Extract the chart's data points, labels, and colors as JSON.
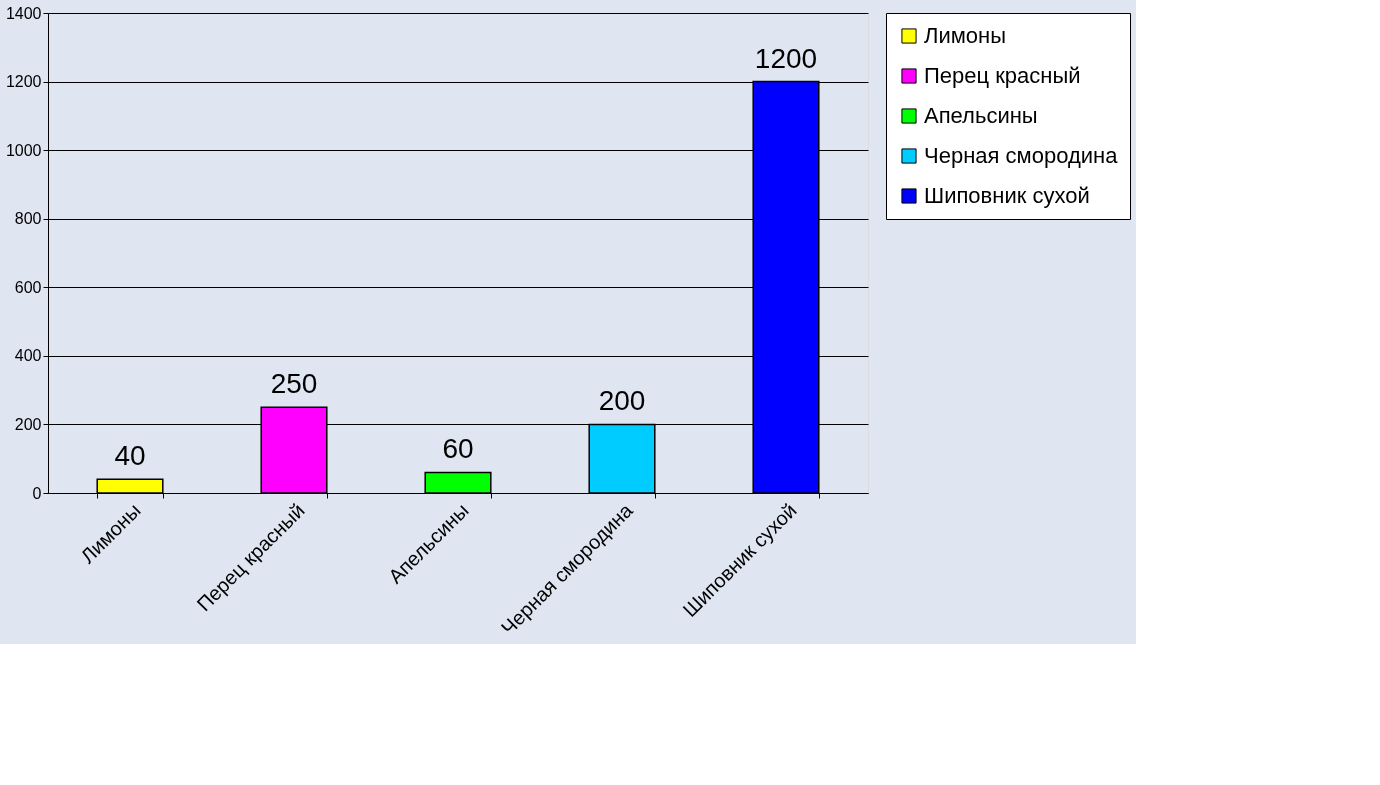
{
  "chart_data": {
    "type": "bar",
    "categories": [
      "Лимоны",
      "Перец красный",
      "Апельсины",
      "Черная смородина",
      "Шиповник сухой"
    ],
    "series": [
      {
        "name": "Лимоны",
        "color": "#ffff00",
        "values": [
          40,
          null,
          null,
          null,
          null
        ]
      },
      {
        "name": "Перец красный",
        "color": "#ff00ff",
        "values": [
          null,
          250,
          null,
          null,
          null
        ]
      },
      {
        "name": "Апельсины",
        "color": "#00ff00",
        "values": [
          null,
          null,
          60,
          null,
          null
        ]
      },
      {
        "name": "Черная смородина",
        "color": "#00ccff",
        "values": [
          null,
          null,
          null,
          200,
          null
        ]
      },
      {
        "name": "Шиповник сухой",
        "color": "#0000ff",
        "values": [
          null,
          null,
          null,
          null,
          1200
        ]
      }
    ],
    "ylim": [
      0,
      1400
    ],
    "yticks": [
      0,
      200,
      400,
      600,
      800,
      1000,
      1200,
      1400
    ],
    "grid": "y",
    "legend": "right",
    "data_labels": true
  }
}
